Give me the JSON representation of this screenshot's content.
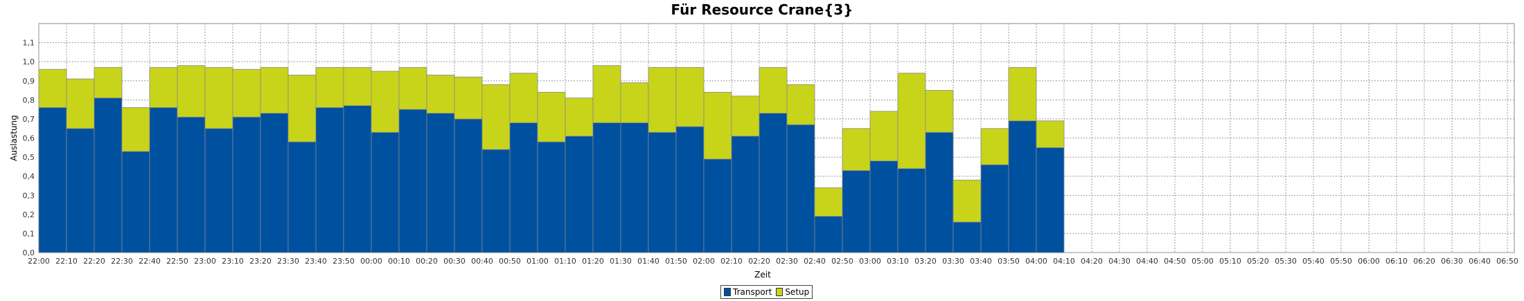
{
  "chart_data": {
    "type": "bar",
    "stacked": true,
    "title": "Für Resource Crane{3}",
    "xlabel": "Zeit",
    "ylabel": "Auslastung",
    "ylim": [
      0,
      1.2
    ],
    "yticks": [
      "0,0",
      "0,1",
      "0,2",
      "0,3",
      "0,4",
      "0,5",
      "0,6",
      "0,7",
      "0,8",
      "0,9",
      "1,0",
      "1,1"
    ],
    "xticks": [
      "22:00",
      "22:10",
      "22:20",
      "22:30",
      "22:40",
      "22:50",
      "23:00",
      "23:10",
      "23:20",
      "23:30",
      "23:40",
      "23:50",
      "00:00",
      "00:10",
      "00:20",
      "00:30",
      "00:40",
      "00:50",
      "01:00",
      "01:10",
      "01:20",
      "01:30",
      "01:40",
      "01:50",
      "02:00",
      "02:10",
      "02:20",
      "02:30",
      "02:40",
      "02:50",
      "03:00",
      "03:10",
      "03:20",
      "03:30",
      "03:40",
      "03:50",
      "04:00",
      "04:10",
      "04:20",
      "04:30",
      "04:40",
      "04:50",
      "05:00",
      "05:10",
      "05:20",
      "05:30",
      "05:40",
      "05:50",
      "06:00",
      "06:10",
      "06:20",
      "06:30",
      "06:40",
      "06:50"
    ],
    "grid": true,
    "legend_position": "bottom-center",
    "colors": {
      "Transport": "#0050a0",
      "Setup": "#c8d41a"
    },
    "series": [
      {
        "name": "Transport",
        "values": [
          0.76,
          0.65,
          0.81,
          0.53,
          0.76,
          0.71,
          0.65,
          0.71,
          0.73,
          0.58,
          0.76,
          0.77,
          0.63,
          0.75,
          0.73,
          0.7,
          0.54,
          0.68,
          0.58,
          0.61,
          0.68,
          0.68,
          0.63,
          0.66,
          0.49,
          0.61,
          0.73,
          0.67,
          0.19,
          0.43,
          0.48,
          0.44,
          0.63,
          0.16,
          0.46,
          0.69,
          0.55
        ]
      },
      {
        "name": "Setup",
        "values": [
          0.2,
          0.26,
          0.16,
          0.23,
          0.21,
          0.27,
          0.32,
          0.25,
          0.24,
          0.35,
          0.21,
          0.2,
          0.32,
          0.22,
          0.2,
          0.22,
          0.34,
          0.26,
          0.26,
          0.2,
          0.3,
          0.21,
          0.34,
          0.31,
          0.35,
          0.21,
          0.24,
          0.21,
          0.15,
          0.22,
          0.26,
          0.5,
          0.22,
          0.22,
          0.19,
          0.28,
          0.14
        ]
      }
    ]
  }
}
